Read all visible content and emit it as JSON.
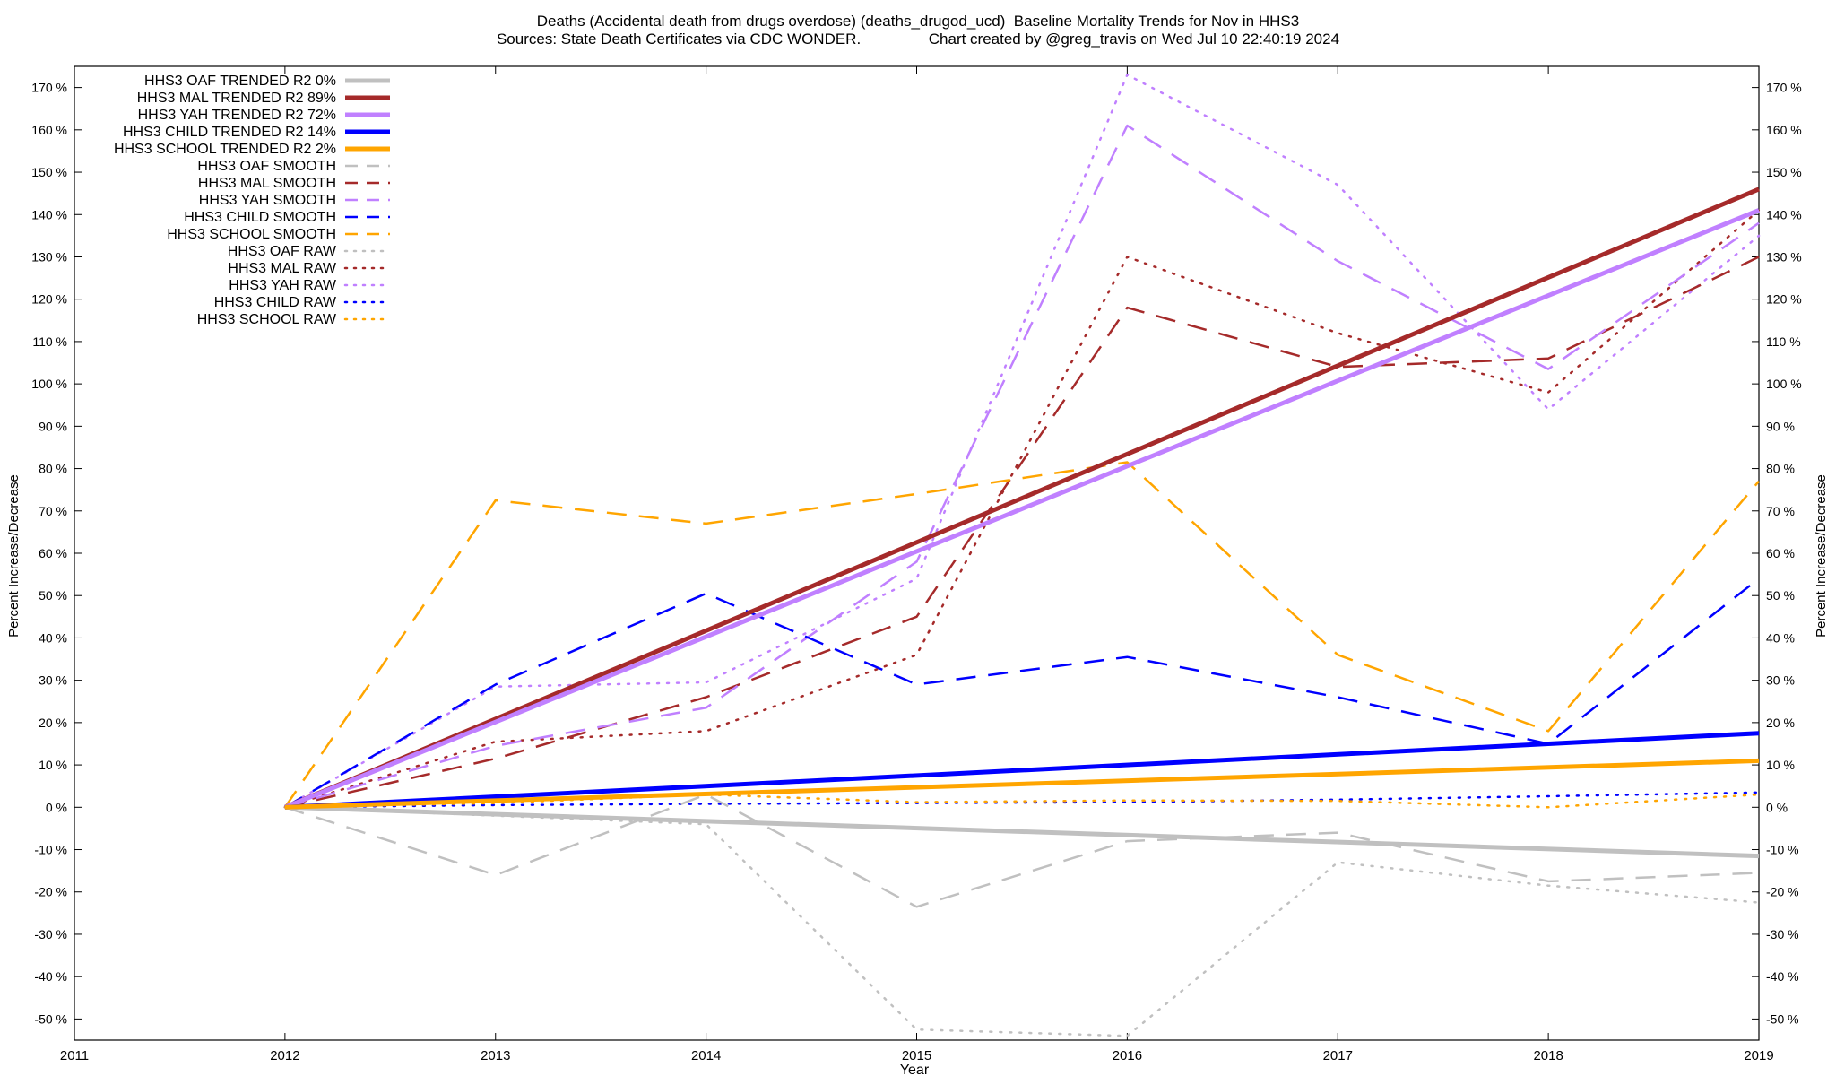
{
  "title_line1": "Deaths (Accidental death from drugs overdose) (deaths_drugod_ucd)  Baseline Mortality Trends for Nov in HHS3",
  "title_line2": "Sources: State Death Certificates via CDC WONDER.                Chart created by @greg_travis on Wed Jul 10 22:40:19 2024",
  "chart_data": {
    "type": "line",
    "xlabel": "Year",
    "ylabel": "Percent Increase/Decrease",
    "y2label": "Percent Increase/Decrease",
    "xlim": [
      2011,
      2019
    ],
    "ylim": [
      -55,
      175
    ],
    "x_ticks": [
      2011,
      2012,
      2013,
      2014,
      2015,
      2016,
      2017,
      2018,
      2019
    ],
    "y_ticks": [
      -50,
      -40,
      -30,
      -20,
      -10,
      0,
      10,
      20,
      30,
      40,
      50,
      60,
      70,
      80,
      90,
      100,
      110,
      120,
      130,
      140,
      150,
      160,
      170
    ],
    "y_tick_suffix": " %",
    "grid": false,
    "legend_position": "top-left",
    "colors": {
      "oaf": "#c0c0c0",
      "mal": "#a52a2a",
      "yah": "#c080ff",
      "child": "#0000ff",
      "school": "#ffa500"
    },
    "x": [
      2012,
      2013,
      2014,
      2015,
      2016,
      2017,
      2018,
      2019
    ],
    "series": [
      {
        "name": "HHS3 OAF TRENDED R2   0%",
        "group": "oaf",
        "style": "trend",
        "x": [
          2012,
          2019
        ],
        "values": [
          0,
          -11.5
        ]
      },
      {
        "name": "HHS3 MAL TRENDED R2  89%",
        "group": "mal",
        "style": "trend",
        "x": [
          2012,
          2019
        ],
        "values": [
          0,
          146
        ]
      },
      {
        "name": "HHS3 YAH TRENDED R2  72%",
        "group": "yah",
        "style": "trend",
        "x": [
          2012,
          2019
        ],
        "values": [
          0,
          141
        ]
      },
      {
        "name": "HHS3 CHILD TRENDED R2  14%",
        "group": "child",
        "style": "trend",
        "x": [
          2012,
          2019
        ],
        "values": [
          0,
          17.5
        ]
      },
      {
        "name": "HHS3 SCHOOL TRENDED R2   2%",
        "group": "school",
        "style": "trend",
        "x": [
          2012,
          2019
        ],
        "values": [
          0,
          11
        ]
      },
      {
        "name": "HHS3 OAF SMOOTH",
        "group": "oaf",
        "style": "smooth",
        "values": [
          0,
          -16,
          3,
          -23.5,
          -8,
          -6,
          -17.5,
          -15.5
        ]
      },
      {
        "name": "HHS3 MAL SMOOTH",
        "group": "mal",
        "style": "smooth",
        "values": [
          0,
          11.5,
          26,
          45,
          118,
          104,
          106,
          130
        ]
      },
      {
        "name": "HHS3 YAH SMOOTH",
        "group": "yah",
        "style": "smooth",
        "values": [
          0,
          14.5,
          23.5,
          58,
          161,
          129,
          103.5,
          138
        ]
      },
      {
        "name": "HHS3 CHILD SMOOTH",
        "group": "child",
        "style": "smooth",
        "values": [
          0,
          29,
          50.5,
          29,
          35.5,
          26,
          15,
          54
        ]
      },
      {
        "name": "HHS3 SCHOOL SMOOTH",
        "group": "school",
        "style": "smooth",
        "values": [
          0,
          72.5,
          67,
          74,
          81.5,
          36,
          18,
          77
        ]
      },
      {
        "name": "HHS3 OAF RAW",
        "group": "oaf",
        "style": "raw",
        "values": [
          0,
          -2,
          -4,
          -52.5,
          -54,
          -13,
          -18.5,
          -22.5
        ]
      },
      {
        "name": "HHS3 MAL RAW",
        "group": "mal",
        "style": "raw",
        "values": [
          0,
          15.5,
          18,
          36,
          130,
          112,
          98,
          141
        ]
      },
      {
        "name": "HHS3 YAH RAW",
        "group": "yah",
        "style": "raw",
        "values": [
          0,
          28.5,
          29.5,
          54,
          173,
          147,
          94,
          135
        ]
      },
      {
        "name": "HHS3 CHILD RAW",
        "group": "child",
        "style": "raw",
        "values": [
          0,
          0.5,
          0.8,
          1.0,
          1.2,
          1.8,
          2.6,
          3.5
        ]
      },
      {
        "name": "HHS3 SCHOOL RAW",
        "group": "school",
        "style": "raw",
        "values": [
          0,
          1.0,
          3.0,
          1.2,
          1.6,
          1.5,
          0.0,
          3.0
        ]
      }
    ]
  }
}
